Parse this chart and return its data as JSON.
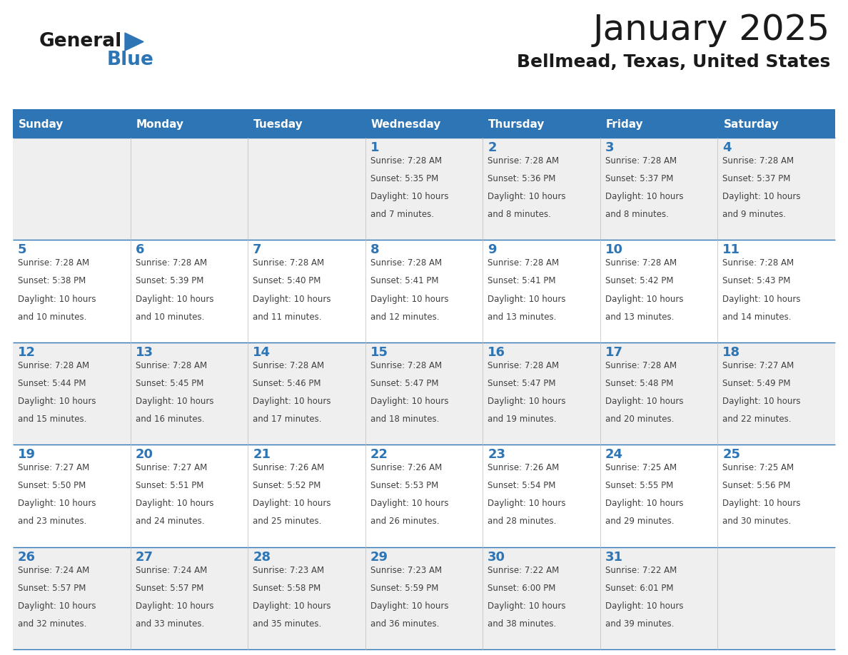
{
  "title": "January 2025",
  "subtitle": "Bellmead, Texas, United States",
  "days_of_week": [
    "Sunday",
    "Monday",
    "Tuesday",
    "Wednesday",
    "Thursday",
    "Friday",
    "Saturday"
  ],
  "header_bg": "#2E75B6",
  "header_text": "#FFFFFF",
  "cell_bg_light": "#EFEFEF",
  "cell_bg_white": "#FFFFFF",
  "day_number_color": "#2E75B6",
  "text_color": "#404040",
  "line_color": "#2E75B6",
  "calendar_data": [
    [
      {
        "day": null,
        "sunrise": null,
        "sunset": null,
        "daylight": null
      },
      {
        "day": null,
        "sunrise": null,
        "sunset": null,
        "daylight": null
      },
      {
        "day": null,
        "sunrise": null,
        "sunset": null,
        "daylight": null
      },
      {
        "day": 1,
        "sunrise": "7:28 AM",
        "sunset": "5:35 PM",
        "daylight": "10 hours and 7 minutes."
      },
      {
        "day": 2,
        "sunrise": "7:28 AM",
        "sunset": "5:36 PM",
        "daylight": "10 hours and 8 minutes."
      },
      {
        "day": 3,
        "sunrise": "7:28 AM",
        "sunset": "5:37 PM",
        "daylight": "10 hours and 8 minutes."
      },
      {
        "day": 4,
        "sunrise": "7:28 AM",
        "sunset": "5:37 PM",
        "daylight": "10 hours and 9 minutes."
      }
    ],
    [
      {
        "day": 5,
        "sunrise": "7:28 AM",
        "sunset": "5:38 PM",
        "daylight": "10 hours and 10 minutes."
      },
      {
        "day": 6,
        "sunrise": "7:28 AM",
        "sunset": "5:39 PM",
        "daylight": "10 hours and 10 minutes."
      },
      {
        "day": 7,
        "sunrise": "7:28 AM",
        "sunset": "5:40 PM",
        "daylight": "10 hours and 11 minutes."
      },
      {
        "day": 8,
        "sunrise": "7:28 AM",
        "sunset": "5:41 PM",
        "daylight": "10 hours and 12 minutes."
      },
      {
        "day": 9,
        "sunrise": "7:28 AM",
        "sunset": "5:41 PM",
        "daylight": "10 hours and 13 minutes."
      },
      {
        "day": 10,
        "sunrise": "7:28 AM",
        "sunset": "5:42 PM",
        "daylight": "10 hours and 13 minutes."
      },
      {
        "day": 11,
        "sunrise": "7:28 AM",
        "sunset": "5:43 PM",
        "daylight": "10 hours and 14 minutes."
      }
    ],
    [
      {
        "day": 12,
        "sunrise": "7:28 AM",
        "sunset": "5:44 PM",
        "daylight": "10 hours and 15 minutes."
      },
      {
        "day": 13,
        "sunrise": "7:28 AM",
        "sunset": "5:45 PM",
        "daylight": "10 hours and 16 minutes."
      },
      {
        "day": 14,
        "sunrise": "7:28 AM",
        "sunset": "5:46 PM",
        "daylight": "10 hours and 17 minutes."
      },
      {
        "day": 15,
        "sunrise": "7:28 AM",
        "sunset": "5:47 PM",
        "daylight": "10 hours and 18 minutes."
      },
      {
        "day": 16,
        "sunrise": "7:28 AM",
        "sunset": "5:47 PM",
        "daylight": "10 hours and 19 minutes."
      },
      {
        "day": 17,
        "sunrise": "7:28 AM",
        "sunset": "5:48 PM",
        "daylight": "10 hours and 20 minutes."
      },
      {
        "day": 18,
        "sunrise": "7:27 AM",
        "sunset": "5:49 PM",
        "daylight": "10 hours and 22 minutes."
      }
    ],
    [
      {
        "day": 19,
        "sunrise": "7:27 AM",
        "sunset": "5:50 PM",
        "daylight": "10 hours and 23 minutes."
      },
      {
        "day": 20,
        "sunrise": "7:27 AM",
        "sunset": "5:51 PM",
        "daylight": "10 hours and 24 minutes."
      },
      {
        "day": 21,
        "sunrise": "7:26 AM",
        "sunset": "5:52 PM",
        "daylight": "10 hours and 25 minutes."
      },
      {
        "day": 22,
        "sunrise": "7:26 AM",
        "sunset": "5:53 PM",
        "daylight": "10 hours and 26 minutes."
      },
      {
        "day": 23,
        "sunrise": "7:26 AM",
        "sunset": "5:54 PM",
        "daylight": "10 hours and 28 minutes."
      },
      {
        "day": 24,
        "sunrise": "7:25 AM",
        "sunset": "5:55 PM",
        "daylight": "10 hours and 29 minutes."
      },
      {
        "day": 25,
        "sunrise": "7:25 AM",
        "sunset": "5:56 PM",
        "daylight": "10 hours and 30 minutes."
      }
    ],
    [
      {
        "day": 26,
        "sunrise": "7:24 AM",
        "sunset": "5:57 PM",
        "daylight": "10 hours and 32 minutes."
      },
      {
        "day": 27,
        "sunrise": "7:24 AM",
        "sunset": "5:57 PM",
        "daylight": "10 hours and 33 minutes."
      },
      {
        "day": 28,
        "sunrise": "7:23 AM",
        "sunset": "5:58 PM",
        "daylight": "10 hours and 35 minutes."
      },
      {
        "day": 29,
        "sunrise": "7:23 AM",
        "sunset": "5:59 PM",
        "daylight": "10 hours and 36 minutes."
      },
      {
        "day": 30,
        "sunrise": "7:22 AM",
        "sunset": "6:00 PM",
        "daylight": "10 hours and 38 minutes."
      },
      {
        "day": 31,
        "sunrise": "7:22 AM",
        "sunset": "6:01 PM",
        "daylight": "10 hours and 39 minutes."
      },
      {
        "day": null,
        "sunrise": null,
        "sunset": null,
        "daylight": null
      }
    ]
  ]
}
